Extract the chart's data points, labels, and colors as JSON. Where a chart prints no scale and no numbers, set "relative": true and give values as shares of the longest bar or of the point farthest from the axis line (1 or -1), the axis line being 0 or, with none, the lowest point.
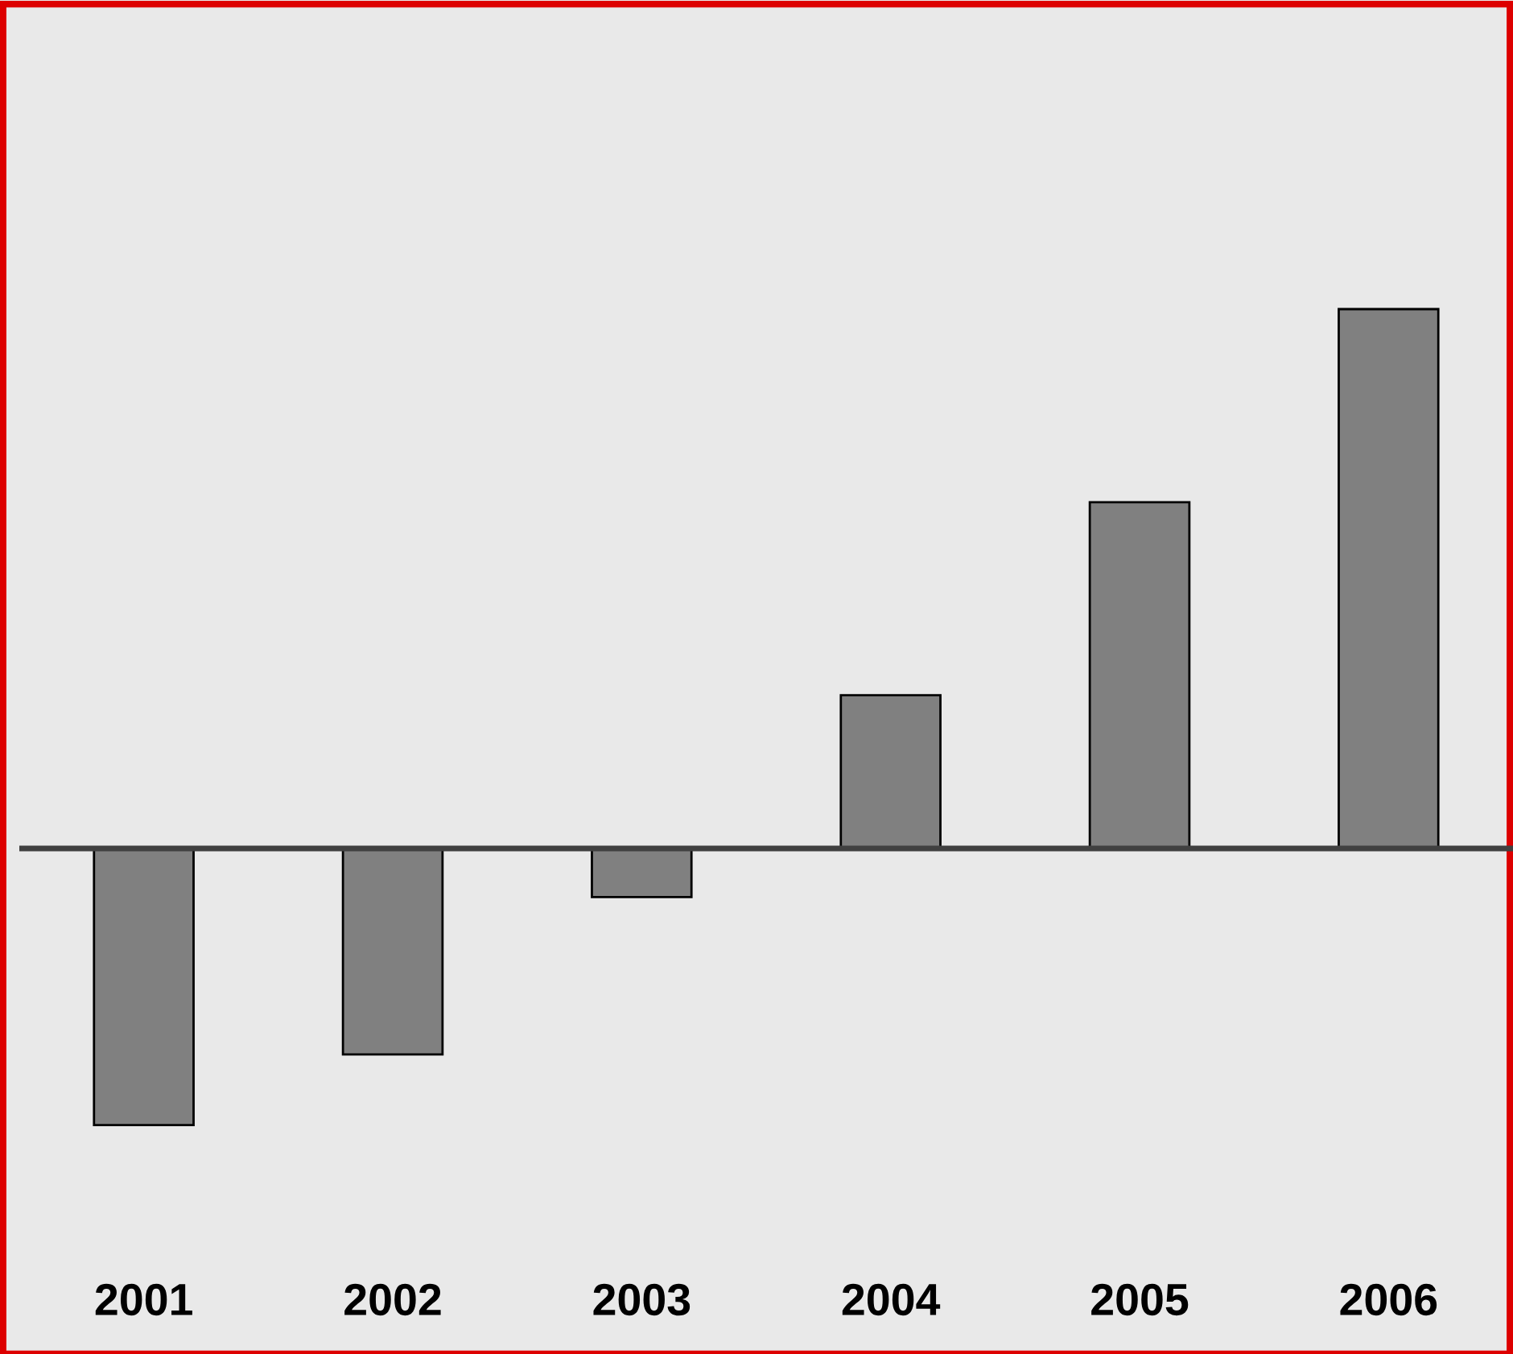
{
  "chart_data": {
    "type": "bar",
    "relative": true,
    "categories": [
      "2001",
      "2002",
      "2003",
      "2004",
      "2005",
      "2006"
    ],
    "values": [
      -0.513,
      -0.382,
      -0.09,
      0.284,
      0.642,
      1
    ],
    "color": "#808080",
    "grid": false,
    "legend": false
  }
}
